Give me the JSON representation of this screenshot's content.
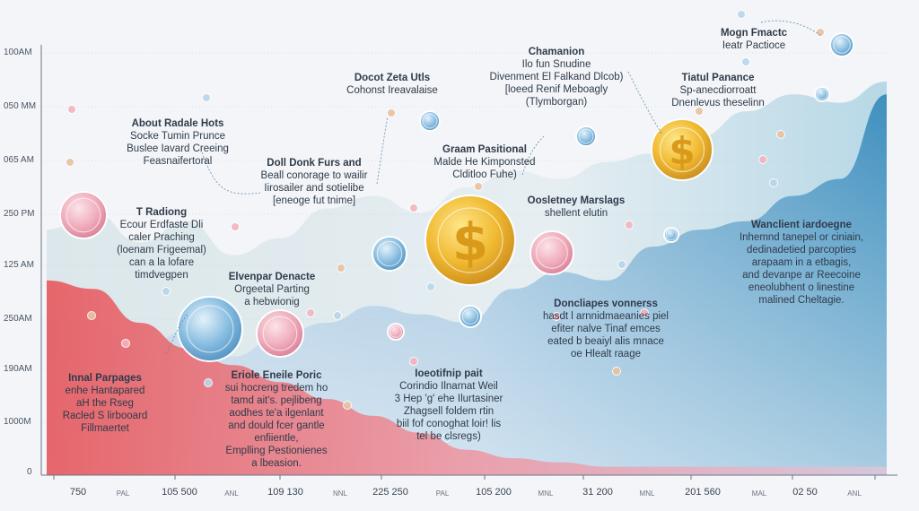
{
  "chart_data": {
    "type": "area",
    "title": "",
    "y_tick_labels": [
      "100AM",
      "050 MM",
      "065 AM",
      "250 PM",
      "125 AM",
      "250AM",
      "190AM",
      "1000M",
      "0"
    ],
    "x_tick_labels": [
      {
        "value": "750",
        "unit": "PAL"
      },
      {
        "value": "105 500",
        "unit": "ANL"
      },
      {
        "value": "109 130",
        "unit": "NNL"
      },
      {
        "value": "225 250",
        "unit": "PAL"
      },
      {
        "value": "105 200",
        "unit": "MNL"
      },
      {
        "value": "31 200",
        "unit": "MNL"
      },
      {
        "value": "201 560",
        "unit": "MAL"
      },
      {
        "value": "02 50",
        "unit": "ANL"
      }
    ],
    "series": [
      {
        "name": "upper band",
        "color": "#c9dfe8",
        "values": [
          0.58,
          0.62,
          0.55,
          0.6,
          0.52,
          0.56,
          0.63,
          0.66,
          0.62,
          0.68,
          0.72,
          0.7,
          0.74,
          0.76,
          0.8,
          0.86,
          0.9,
          0.88,
          0.93
        ]
      },
      {
        "name": "blue band",
        "color": "#5fa2c6",
        "values": [
          0.38,
          0.36,
          0.3,
          0.34,
          0.28,
          0.33,
          0.36,
          0.4,
          0.38,
          0.36,
          0.44,
          0.48,
          0.46,
          0.54,
          0.58,
          0.6,
          0.66,
          0.7,
          0.9
        ]
      },
      {
        "name": "red band",
        "color": "#e0616a",
        "values": [
          0.46,
          0.44,
          0.36,
          0.3,
          0.26,
          0.22,
          0.18,
          0.14,
          0.1,
          0.06,
          0.04,
          0.03,
          0.02,
          0.02,
          0.02,
          0.02,
          0.02,
          0.02,
          0.02
        ]
      }
    ],
    "annotations": [
      {
        "lines": [
          "About Radale Hots",
          "Socke Tumin Prunce",
          "Buslee Iavard Creeing",
          "Feasnaifertoral"
        ]
      },
      {
        "lines": [
          "T Radiong",
          "Ecour Erdfaste Dli",
          "caler Praching",
          "(loenam Frigeemal)",
          "can a la lofare",
          "timdvegpen"
        ]
      },
      {
        "lines": [
          "Innal Parpages",
          "enhe Hantapared",
          "aH the Rseg",
          "Racled S lirbooard",
          "Fillmaertet"
        ]
      },
      {
        "lines": [
          "Docot Zeta Utls",
          "Cohonst Ireavalaise"
        ]
      },
      {
        "lines": [
          "Doll Donk Furs and",
          "Beall conorage to wailir",
          "Iirosailer and sotielibe",
          "[eneoge fut tnime]"
        ]
      },
      {
        "lines": [
          "Elvenpar Denacte",
          "Orgeetal Parting",
          "a hebwionig"
        ]
      },
      {
        "lines": [
          "Eriole Eneile Poric",
          "sui hocreng tredem ho",
          "tamd ait's. pejlibeng",
          "aodhes te'a ilgenlant",
          "and dould fcer gantle",
          "enfiientle,",
          "Emplling Pestionienes",
          "a lbeasion."
        ]
      },
      {
        "lines": [
          "Chamanion",
          "Ilo fun Snudine",
          "Divenment El Falkand Dlcob)",
          "[loeed Renif Meboagly",
          "(Tlymborgan)"
        ]
      },
      {
        "lines": [
          "Graam Pasitional",
          "Malde He Kimponsted",
          "Clditloo Fuhe)"
        ]
      },
      {
        "lines": [
          "Oosletney Marslags",
          "shellent elutin"
        ]
      },
      {
        "lines": [
          "Doncliapes vonnerss",
          "hasdt l arnnidmaeanies piel",
          "efiter nalve Tinaf emces",
          "eated b beaiyl alis mnace",
          "oe Hlealt raage"
        ]
      },
      {
        "lines": [
          "Ioeotifnip pait",
          "Corindio Ilnarnat Weil",
          "3 Hep 'g' ehe Ilurtasiner",
          "Zhagsell foldem rtin",
          "biil fof conoghat loir! lis",
          "tel be clsregs)"
        ]
      },
      {
        "lines": [
          "Tiatul Panance",
          "Sp-anecdiorroatt",
          "Dnenlevus theselinn"
        ]
      },
      {
        "lines": [
          "Mogn Fmactc",
          "Ieatr Pactioce"
        ]
      },
      {
        "lines": [
          "Wanclient iardoegne",
          "Inhemnd tanepel or ciniain,",
          "dedinadetied parcopties",
          "arapaam in a etbagis,",
          "and devanpe ar Reecoine",
          "eneolubhent o linestine",
          "malined Cheltagie."
        ]
      }
    ]
  }
}
